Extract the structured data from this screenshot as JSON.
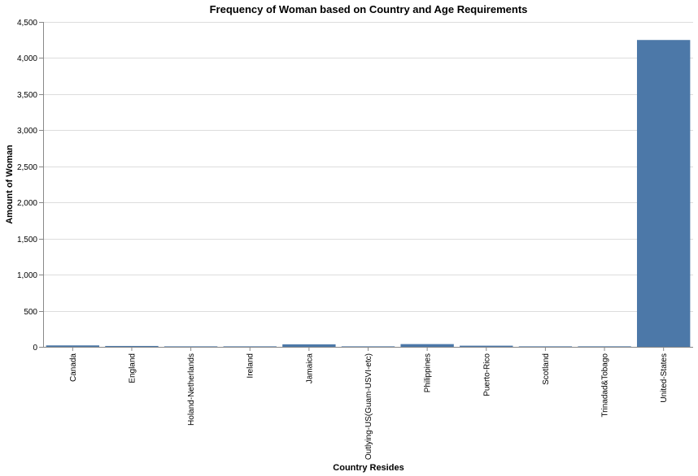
{
  "chart_data": {
    "type": "bar",
    "title": "Frequency of Woman based on Country and Age Requirements",
    "xlabel": "Country Resides",
    "ylabel": "Amount of Woman",
    "categories": [
      "Canada",
      "England",
      "Holand-Netherlands",
      "Ireland",
      "Jamaica",
      "Outlying-US(Guam-USVI-etc)",
      "Philippines",
      "Puerto-Rico",
      "Scotland",
      "Trinadad&Tobago",
      "United-States"
    ],
    "values": [
      20,
      12,
      1,
      4,
      35,
      2,
      38,
      16,
      3,
      7,
      4250
    ],
    "ylim": [
      0,
      4500
    ],
    "yticks": [
      0,
      500,
      1000,
      1500,
      2000,
      2500,
      3000,
      3500,
      4000,
      4500
    ],
    "ytick_labels": [
      "0",
      "500",
      "1,000",
      "1,500",
      "2,000",
      "2,500",
      "3,000",
      "3,500",
      "4,000",
      "4,500"
    ],
    "grid": true,
    "bar_color": "#4c78a8"
  }
}
